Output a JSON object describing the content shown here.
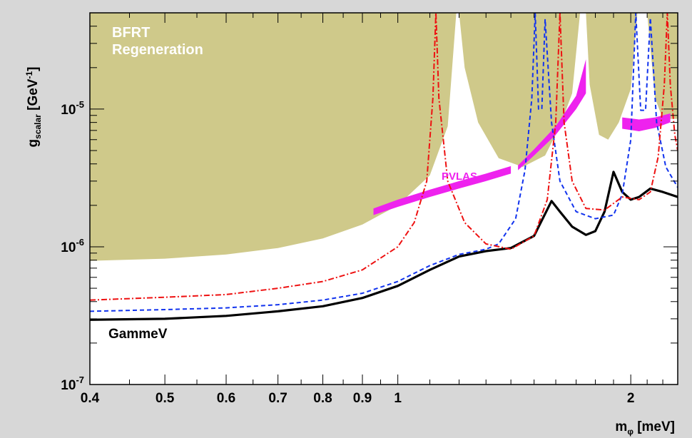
{
  "chart_data": {
    "type": "line",
    "title": "",
    "xlabel": "m",
    "xlabel_sub": "φ",
    "xlabel_unit": " [meV]",
    "ylabel": "g",
    "ylabel_sub": "scalar",
    "ylabel_unit_pre": " [GeV",
    "ylabel_unit_sup": "-1",
    "ylabel_unit_post": "]",
    "x_scale": "log",
    "y_scale": "log",
    "xlim": [
      0.4,
      2.3
    ],
    "ylim": [
      1e-07,
      5e-05
    ],
    "x_ticks": [
      {
        "value": 0.4,
        "label": "0.4"
      },
      {
        "value": 0.5,
        "label": "0.5"
      },
      {
        "value": 0.6,
        "label": "0.6"
      },
      {
        "value": 0.7,
        "label": "0.7"
      },
      {
        "value": 0.8,
        "label": "0.8"
      },
      {
        "value": 0.9,
        "label": "0.9"
      },
      {
        "value": 1.0,
        "label": "1"
      },
      {
        "value": 2.0,
        "label": "2"
      }
    ],
    "y_ticks": [
      {
        "value": 1e-07,
        "base": "10",
        "exp": "-7"
      },
      {
        "value": 1e-06,
        "base": "10",
        "exp": "-6"
      },
      {
        "value": 1e-05,
        "base": "10",
        "exp": "-5"
      }
    ],
    "annotations": {
      "bfrt_line1": "BFRT",
      "bfrt_line2": "Regeneration",
      "pvlas": "PVLAS",
      "gammev": "GammeV"
    },
    "colors": {
      "bfrt_fill": "#cfc98a",
      "pvlas": "#ee22ee",
      "gammev": "#000000",
      "red_dashdot": "#ee1111",
      "blue_dashed": "#1133ee",
      "frame_bg": "#ffffff",
      "page_bg": "#d7d7d7"
    },
    "series": [
      {
        "key": "gammev",
        "style": "solid",
        "points": [
          [
            0.4,
            2.95e-07
          ],
          [
            0.5,
            3e-07
          ],
          [
            0.6,
            3.15e-07
          ],
          [
            0.7,
            3.4e-07
          ],
          [
            0.8,
            3.7e-07
          ],
          [
            0.9,
            4.25e-07
          ],
          [
            1.0,
            5.2e-07
          ],
          [
            1.1,
            6.8e-07
          ],
          [
            1.2,
            8.5e-07
          ],
          [
            1.3,
            9.3e-07
          ],
          [
            1.4,
            9.8e-07
          ],
          [
            1.5,
            1.2e-06
          ],
          [
            1.58,
            2.15e-06
          ],
          [
            1.62,
            1.8e-06
          ],
          [
            1.68,
            1.4e-06
          ],
          [
            1.75,
            1.22e-06
          ],
          [
            1.8,
            1.3e-06
          ],
          [
            1.85,
            1.8e-06
          ],
          [
            1.9,
            3.5e-06
          ],
          [
            1.95,
            2.5e-06
          ],
          [
            2.0,
            2.2e-06
          ],
          [
            2.05,
            2.3e-06
          ],
          [
            2.12,
            2.65e-06
          ],
          [
            2.2,
            2.5e-06
          ],
          [
            2.3,
            2.3e-06
          ]
        ]
      },
      {
        "key": "blue",
        "style": "dashed",
        "points": [
          [
            0.4,
            3.4e-07
          ],
          [
            0.5,
            3.5e-07
          ],
          [
            0.6,
            3.6e-07
          ],
          [
            0.7,
            3.8e-07
          ],
          [
            0.8,
            4.1e-07
          ],
          [
            0.9,
            4.6e-07
          ],
          [
            1.0,
            5.6e-07
          ],
          [
            1.1,
            7.3e-07
          ],
          [
            1.2,
            8.8e-07
          ],
          [
            1.3,
            9.6e-07
          ],
          [
            1.35,
            1.05e-06
          ],
          [
            1.42,
            1.6e-06
          ],
          [
            1.46,
            3.6e-06
          ],
          [
            1.49,
            1.2e-05
          ],
          [
            1.505,
            5e-05
          ],
          [
            1.52,
            1e-05
          ],
          [
            1.535,
            1e-05
          ],
          [
            1.55,
            4.5e-05
          ],
          [
            1.58,
            8e-06
          ],
          [
            1.62,
            3e-06
          ],
          [
            1.7,
            1.8e-06
          ],
          [
            1.8,
            1.6e-06
          ],
          [
            1.9,
            1.7e-06
          ],
          [
            1.95,
            2.4e-06
          ],
          [
            2.0,
            6e-06
          ],
          [
            2.03,
            5e-05
          ],
          [
            2.06,
            9.8e-06
          ],
          [
            2.09,
            9.8e-06
          ],
          [
            2.12,
            4.6e-05
          ],
          [
            2.16,
            8e-06
          ],
          [
            2.22,
            3.8e-06
          ],
          [
            2.3,
            2.7e-06
          ]
        ]
      },
      {
        "key": "red",
        "style": "dashdot",
        "points": [
          [
            0.4,
            4.1e-07
          ],
          [
            0.5,
            4.3e-07
          ],
          [
            0.6,
            4.5e-07
          ],
          [
            0.7,
            5e-07
          ],
          [
            0.8,
            5.6e-07
          ],
          [
            0.9,
            6.8e-07
          ],
          [
            1.0,
            1e-06
          ],
          [
            1.05,
            1.5e-06
          ],
          [
            1.09,
            3e-06
          ],
          [
            1.11,
            1.2e-05
          ],
          [
            1.12,
            5e-05
          ],
          [
            1.13,
            1.2e-05
          ],
          [
            1.16,
            3e-06
          ],
          [
            1.22,
            1.5e-06
          ],
          [
            1.3,
            1.05e-06
          ],
          [
            1.4,
            9.6e-07
          ],
          [
            1.5,
            1.2e-06
          ],
          [
            1.56,
            2.2e-06
          ],
          [
            1.6,
            8e-06
          ],
          [
            1.62,
            5e-05
          ],
          [
            1.64,
            8e-06
          ],
          [
            1.68,
            3e-06
          ],
          [
            1.75,
            1.9e-06
          ],
          [
            1.85,
            1.85e-06
          ],
          [
            1.95,
            2.3e-06
          ],
          [
            2.05,
            2.2e-06
          ],
          [
            2.12,
            2.5e-06
          ],
          [
            2.17,
            4.5e-06
          ],
          [
            2.21,
            1.5e-05
          ],
          [
            2.23,
            5e-05
          ],
          [
            2.25,
            1.5e-05
          ],
          [
            2.28,
            6.5e-06
          ],
          [
            2.3,
            5e-06
          ]
        ]
      }
    ],
    "bfrt_excluded_region": [
      [
        0.4,
        5e-05
      ],
      [
        0.4,
        7.9e-07
      ],
      [
        0.5,
        8.2e-07
      ],
      [
        0.6,
        8.8e-07
      ],
      [
        0.7,
        9.8e-07
      ],
      [
        0.8,
        1.15e-06
      ],
      [
        0.9,
        1.45e-06
      ],
      [
        1.0,
        2e-06
      ],
      [
        1.1,
        3.3e-06
      ],
      [
        1.16,
        7.5e-06
      ],
      [
        1.19,
        5e-05
      ],
      [
        1.2,
        5e-05
      ],
      [
        1.22,
        2e-05
      ],
      [
        1.27,
        8e-06
      ],
      [
        1.35,
        4.4e-06
      ],
      [
        1.45,
        3.8e-06
      ],
      [
        1.55,
        4.6e-06
      ],
      [
        1.62,
        7.5e-06
      ],
      [
        1.68,
        1.3e-05
      ],
      [
        1.72,
        5e-05
      ],
      [
        1.75,
        5e-05
      ],
      [
        1.77,
        1.5e-05
      ],
      [
        1.82,
        6.5e-06
      ],
      [
        1.87,
        6e-06
      ],
      [
        1.93,
        8e-06
      ],
      [
        2.0,
        1.4e-05
      ],
      [
        2.04,
        5e-05
      ],
      [
        2.1,
        5e-05
      ],
      [
        2.15,
        1.2e-05
      ],
      [
        2.2,
        8.5e-06
      ],
      [
        2.3,
        8.5e-06
      ],
      [
        2.3,
        5e-05
      ]
    ],
    "pvlas_band": {
      "lower": [
        [
          0.93,
          1.7e-06
        ],
        [
          1.0,
          1.95e-06
        ],
        [
          1.1,
          2.3e-06
        ],
        [
          1.2,
          2.65e-06
        ],
        [
          1.3,
          3e-06
        ],
        [
          1.4,
          3.4e-06
        ]
      ],
      "upper": [
        [
          0.93,
          1.9e-06
        ],
        [
          1.0,
          2.2e-06
        ],
        [
          1.1,
          2.6e-06
        ],
        [
          1.2,
          3e-06
        ],
        [
          1.3,
          3.4e-06
        ],
        [
          1.4,
          3.85e-06
        ]
      ],
      "lower2": [
        [
          1.43,
          3.6e-06
        ],
        [
          1.5,
          4.6e-06
        ],
        [
          1.6,
          6.5e-06
        ],
        [
          1.7,
          1e-05
        ],
        [
          1.75,
          1.3e-05
        ]
      ],
      "upper2": [
        [
          1.43,
          3.9e-06
        ],
        [
          1.5,
          5.1e-06
        ],
        [
          1.6,
          7.5e-06
        ],
        [
          1.7,
          1.25e-05
        ],
        [
          1.75,
          2.3e-05
        ]
      ],
      "lower3": [
        [
          1.95,
          7.2e-06
        ],
        [
          2.05,
          6.9e-06
        ],
        [
          2.15,
          7.3e-06
        ],
        [
          2.25,
          8e-06
        ]
      ],
      "upper3": [
        [
          1.95,
          8.7e-06
        ],
        [
          2.05,
          8.4e-06
        ],
        [
          2.15,
          8.7e-06
        ],
        [
          2.25,
          9.3e-06
        ]
      ]
    }
  }
}
